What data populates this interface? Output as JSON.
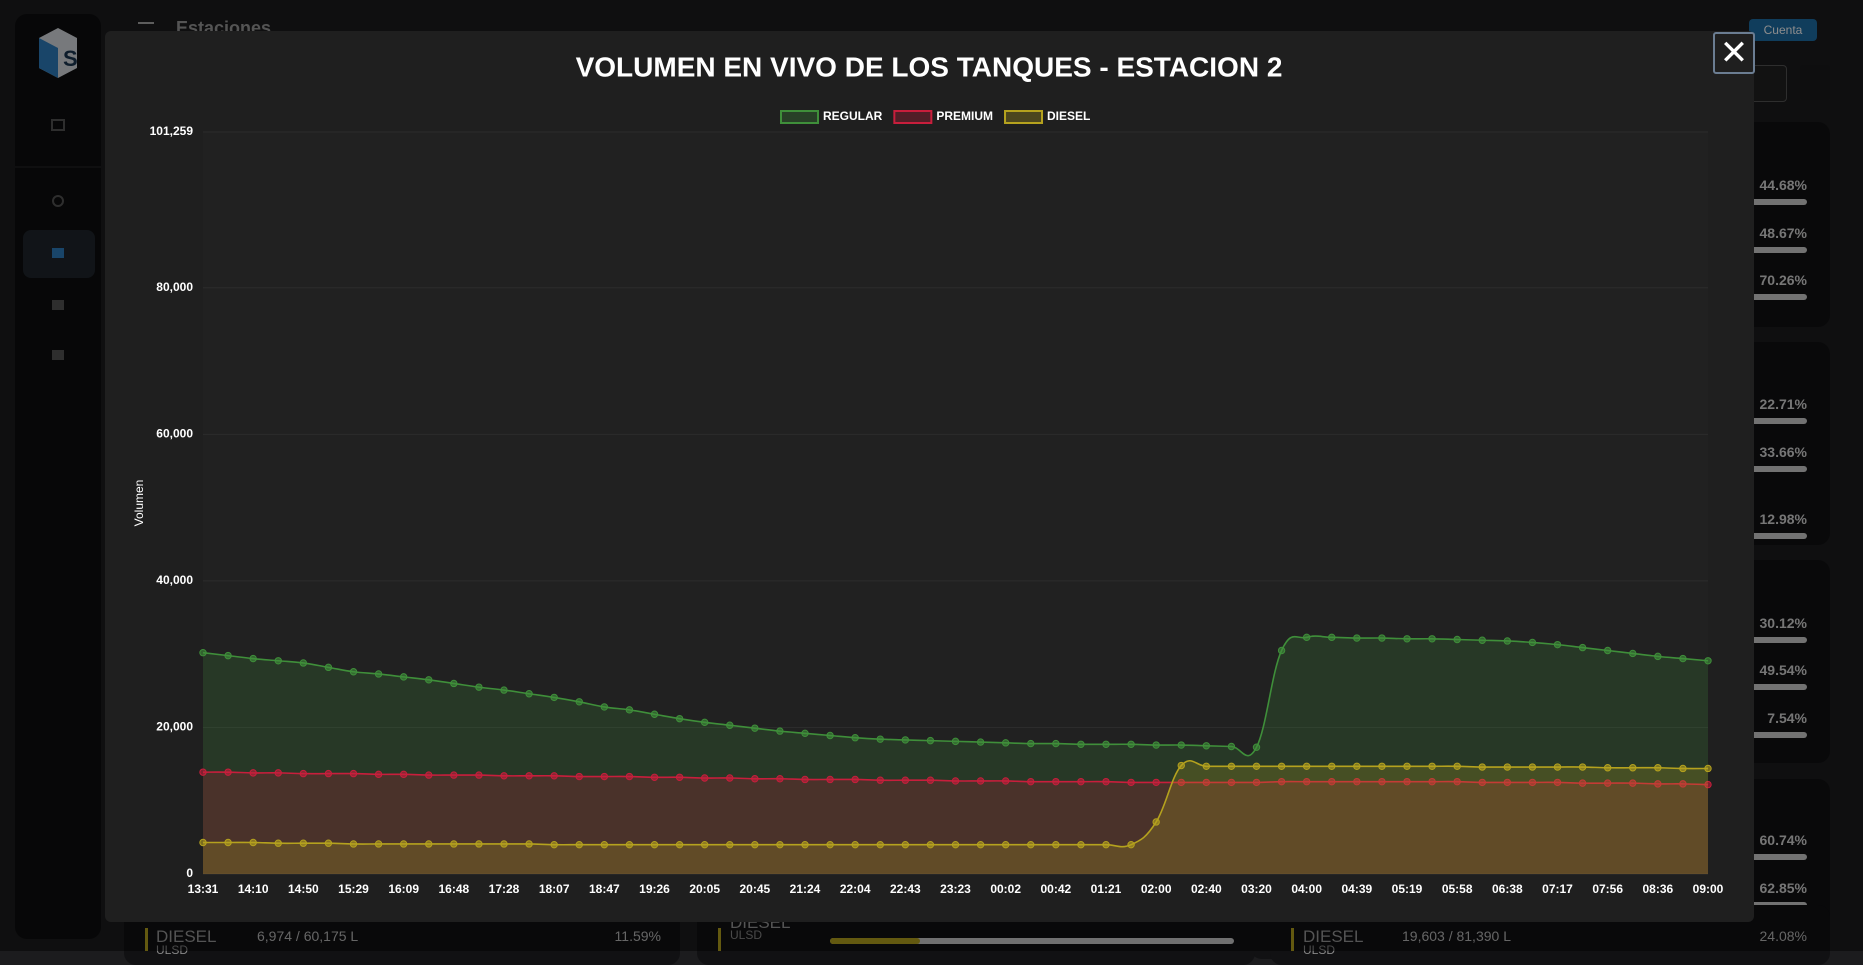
{
  "app": {
    "page_title": "Estaciones",
    "account": "Cuenta",
    "card_percents": [
      "44.68%",
      "48.67%",
      "70.26%",
      "22.71%",
      "33.66%",
      "12.98%",
      "30.12%",
      "49.54%",
      "7.54%",
      "60.74%",
      "62.85%",
      "24.08%"
    ],
    "bottom_cards": [
      {
        "product": "DIESEL",
        "grade": "ULSD",
        "volume": "6,974 / 60,175 L",
        "percent": "11.59%"
      },
      {
        "product": "DIESEL",
        "grade": "ULSD"
      },
      {
        "product": "DIESEL",
        "grade": "ULSD",
        "volume": "19,603 / 81,390 L",
        "percent": "24.08%"
      }
    ]
  },
  "modal": {
    "close": "✕"
  },
  "chart_data": {
    "type": "line",
    "title": "VOLUMEN EN VIVO DE LOS TANQUES - ESTACION 2",
    "y_label": "Volumen",
    "categories": [
      "13:31",
      null,
      "14:10",
      null,
      "14:50",
      null,
      "15:29",
      null,
      "16:09",
      null,
      "16:48",
      null,
      "17:28",
      null,
      "18:07",
      null,
      "18:47",
      null,
      "19:26",
      null,
      "20:05",
      null,
      "20:45",
      null,
      "21:24",
      null,
      "22:04",
      null,
      "22:43",
      null,
      "23:23",
      null,
      "00:02",
      null,
      "00:42",
      null,
      "01:21",
      null,
      "02:00",
      null,
      "02:40",
      null,
      "03:20",
      null,
      "04:00",
      null,
      "04:39",
      null,
      "05:19",
      null,
      "05:58",
      null,
      "06:38",
      null,
      "07:17",
      null,
      "07:56",
      null,
      "08:36",
      null,
      "09:00"
    ],
    "ylim": [
      0,
      101259
    ],
    "yticks": [
      0,
      {
        "value": 20000,
        "label": "20,000"
      },
      {
        "value": 40000,
        "label": "40,000"
      },
      {
        "value": 60000,
        "label": "60,000"
      },
      {
        "value": 80000,
        "label": "80,000"
      },
      {
        "value": 101259,
        "label": "101,259"
      }
    ],
    "grid": true,
    "fill": true,
    "series": [
      {
        "name": "REGULAR",
        "color": "#3f8f3a",
        "values": [
          30200,
          29800,
          29400,
          29100,
          28800,
          28200,
          27600,
          27300,
          26900,
          26500,
          26000,
          25500,
          25100,
          24600,
          24100,
          23500,
          22800,
          22400,
          21800,
          21200,
          20700,
          20300,
          19900,
          19500,
          19200,
          18900,
          18600,
          18400,
          18300,
          18200,
          18100,
          18000,
          17900,
          17800,
          17800,
          17700,
          17700,
          17700,
          17600,
          17600,
          17500,
          17400,
          17300,
          30500,
          32300,
          32300,
          32200,
          32200,
          32100,
          32100,
          32000,
          31900,
          31800,
          31600,
          31300,
          30900,
          30500,
          30100,
          29700,
          29400,
          29100
        ]
      },
      {
        "name": "PREMIUM",
        "color": "#c81e3c",
        "values": [
          13900,
          13900,
          13800,
          13800,
          13700,
          13700,
          13700,
          13600,
          13600,
          13500,
          13500,
          13500,
          13400,
          13400,
          13400,
          13300,
          13300,
          13300,
          13200,
          13200,
          13100,
          13100,
          13000,
          13000,
          12900,
          12900,
          12900,
          12800,
          12800,
          12800,
          12700,
          12700,
          12700,
          12600,
          12600,
          12600,
          12600,
          12500,
          12500,
          12500,
          12500,
          12500,
          12500,
          12600,
          12600,
          12600,
          12600,
          12600,
          12600,
          12600,
          12600,
          12500,
          12500,
          12500,
          12500,
          12400,
          12400,
          12400,
          12300,
          12300,
          12200
        ]
      },
      {
        "name": "DIESEL",
        "color": "#b5a21e",
        "values": [
          4300,
          4300,
          4300,
          4200,
          4200,
          4200,
          4100,
          4100,
          4100,
          4100,
          4100,
          4100,
          4100,
          4100,
          4000,
          4000,
          4000,
          4000,
          4000,
          4000,
          4000,
          4000,
          4000,
          4000,
          4000,
          4000,
          4000,
          4000,
          4000,
          4000,
          4000,
          4000,
          4000,
          4000,
          4000,
          4000,
          4000,
          4000,
          7100,
          14800,
          14700,
          14700,
          14700,
          14700,
          14700,
          14700,
          14700,
          14700,
          14700,
          14700,
          14700,
          14600,
          14600,
          14600,
          14600,
          14600,
          14500,
          14500,
          14500,
          14400,
          14400
        ]
      }
    ]
  }
}
